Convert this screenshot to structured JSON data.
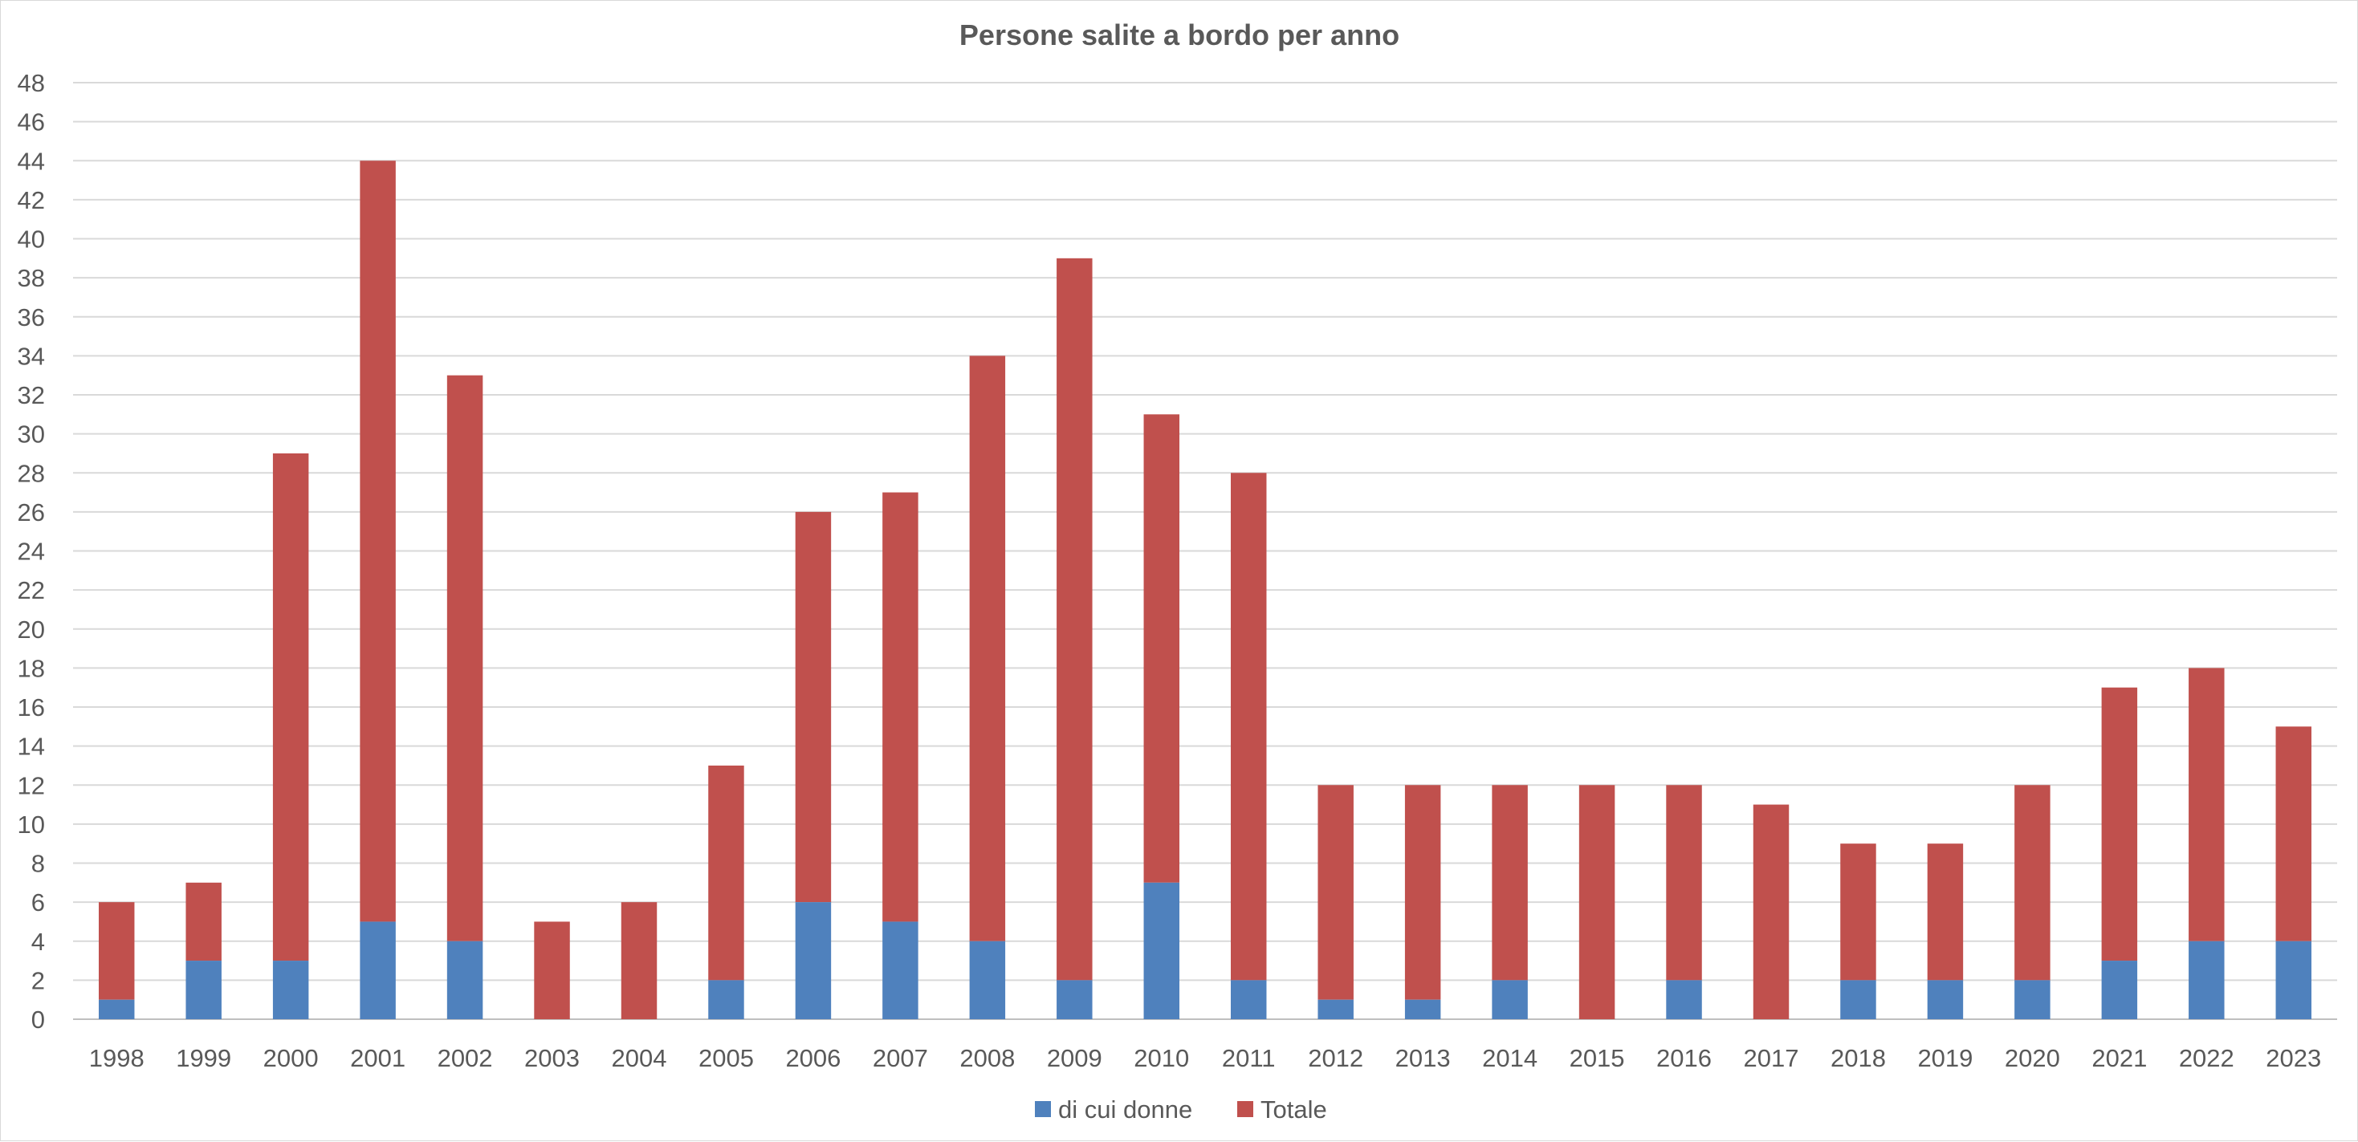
{
  "chart_data": {
    "type": "bar",
    "stacked": true,
    "title": "Persone salite a bordo per anno",
    "xlabel": "",
    "ylabel": "",
    "ylim": [
      0,
      48
    ],
    "y_tick_step": 2,
    "grid": true,
    "legend_position": "bottom",
    "categories": [
      "1998",
      "1999",
      "2000",
      "2001",
      "2002",
      "2003",
      "2004",
      "2005",
      "2006",
      "2007",
      "2008",
      "2009",
      "2010",
      "2011",
      "2012",
      "2013",
      "2014",
      "2015",
      "2016",
      "2017",
      "2018",
      "2019",
      "2020",
      "2021",
      "2022",
      "2023"
    ],
    "series": [
      {
        "name": "di cui donne",
        "color": "#4f81bd",
        "values": [
          1,
          3,
          3,
          5,
          4,
          0,
          0,
          2,
          6,
          5,
          4,
          2,
          7,
          2,
          1,
          1,
          2,
          0,
          2,
          0,
          2,
          2,
          2,
          3,
          4,
          4
        ]
      },
      {
        "name": "Totale",
        "color": "#c0504d",
        "values": [
          6,
          7,
          29,
          44,
          33,
          5,
          6,
          13,
          26,
          27,
          34,
          39,
          31,
          28,
          12,
          12,
          12,
          12,
          12,
          11,
          9,
          9,
          12,
          17,
          18,
          15
        ]
      }
    ]
  }
}
